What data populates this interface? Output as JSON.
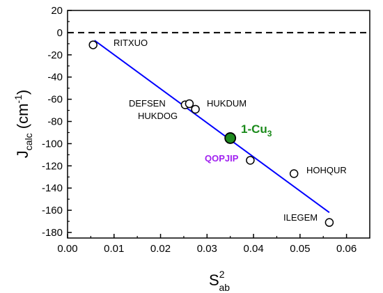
{
  "chart_data": {
    "type": "scatter",
    "xlim": [
      0.0,
      0.065
    ],
    "ylim": [
      -185,
      20
    ],
    "x_ticks": [
      0.0,
      0.01,
      0.02,
      0.03,
      0.04,
      0.05,
      0.06
    ],
    "x_tick_labels": [
      "0.00",
      "0.01",
      "0.02",
      "0.03",
      "0.04",
      "0.05",
      "0.06"
    ],
    "y_ticks": [
      20,
      0,
      -20,
      -40,
      -60,
      -80,
      -100,
      -120,
      -140,
      -160,
      -180
    ],
    "y_tick_labels": [
      "20",
      "0",
      "-20",
      "-40",
      "-60",
      "-80",
      "-100",
      "-120",
      "-140",
      "-160",
      "-180"
    ],
    "xlabel": {
      "main": "S",
      "sup": "2",
      "sub": "ab"
    },
    "ylabel": {
      "main": "J",
      "sub": "calc",
      "unit_open": " (cm",
      "unit_sup": "-1",
      "unit_close": ")"
    },
    "zero_line": {
      "y": 0,
      "style": "dashed"
    },
    "fit_line": {
      "x": [
        0.0058,
        0.0563
      ],
      "y": [
        -7,
        -162
      ],
      "color": "#0000ff"
    },
    "points": [
      {
        "name": "RITXUO",
        "x": 0.0055,
        "y": -11,
        "filled": false
      },
      {
        "name": "DEFSEN",
        "x": 0.0253,
        "y": -65,
        "filled": false
      },
      {
        "name": "",
        "x": 0.0262,
        "y": -64,
        "filled": false
      },
      {
        "name": "HUKDUM",
        "x": 0.0275,
        "y": -69,
        "filled": false
      },
      {
        "name": "1-Cu3",
        "x": 0.035,
        "y": -95,
        "filled": true
      },
      {
        "name": "QOPJIP",
        "x": 0.0393,
        "y": -115,
        "filled": false
      },
      {
        "name": "HOHQUR",
        "x": 0.0487,
        "y": -127,
        "filled": false
      },
      {
        "name": "ILEGEM",
        "x": 0.0563,
        "y": -171,
        "filled": false
      }
    ],
    "labels": {
      "ritxuo": "RITXUO",
      "defsen": "DEFSEN",
      "hukdum": "HUKDUM",
      "hukdog": "HUKDOG",
      "cu3_main": "1-Cu",
      "cu3_sub": "3",
      "qopjip": "QOPJIP",
      "hohqur": "HOHQUR",
      "ilegem": "ILEGEM"
    },
    "colors": {
      "highlight_point": "#1f8a1f",
      "highlight_label": "#1a8a1a",
      "qopjip_label": "#a020f0",
      "axis": "#000000"
    },
    "grid": false,
    "legend": "none"
  }
}
